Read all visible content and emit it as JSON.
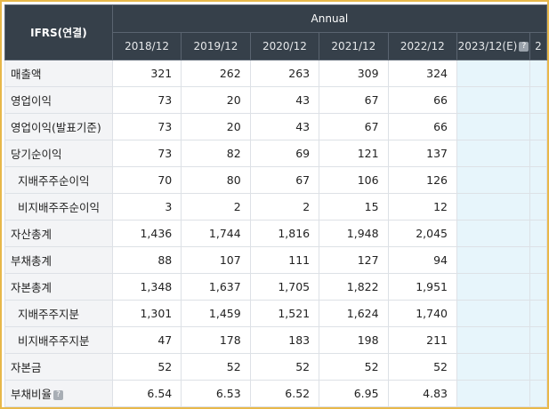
{
  "header": {
    "corner": "IFRS(연결)",
    "group": "Annual",
    "periods": [
      "2018/12",
      "2019/12",
      "2020/12",
      "2021/12",
      "2022/12",
      "2023/12(E)",
      "2"
    ]
  },
  "icons": {
    "help": "question-icon"
  },
  "colors": {
    "header_bg": "#36404a",
    "label_bg": "#f3f4f6",
    "estimate_bg": "#e7f5fb",
    "frame": "#e8b84a"
  },
  "rows": [
    {
      "label": "매출액",
      "sub": false,
      "values": [
        "321",
        "262",
        "263",
        "309",
        "324"
      ]
    },
    {
      "label": "영업이익",
      "sub": false,
      "values": [
        "73",
        "20",
        "43",
        "67",
        "66"
      ]
    },
    {
      "label": "영업이익(발표기준)",
      "sub": false,
      "values": [
        "73",
        "20",
        "43",
        "67",
        "66"
      ]
    },
    {
      "label": "당기순이익",
      "sub": false,
      "values": [
        "73",
        "82",
        "69",
        "121",
        "137"
      ]
    },
    {
      "label": "지배주주순이익",
      "sub": true,
      "values": [
        "70",
        "80",
        "67",
        "106",
        "126"
      ]
    },
    {
      "label": "비지배주주순이익",
      "sub": true,
      "values": [
        "3",
        "2",
        "2",
        "15",
        "12"
      ]
    },
    {
      "label": "자산총계",
      "sub": false,
      "values": [
        "1,436",
        "1,744",
        "1,816",
        "1,948",
        "2,045"
      ]
    },
    {
      "label": "부채총계",
      "sub": false,
      "values": [
        "88",
        "107",
        "111",
        "127",
        "94"
      ]
    },
    {
      "label": "자본총계",
      "sub": false,
      "values": [
        "1,348",
        "1,637",
        "1,705",
        "1,822",
        "1,951"
      ]
    },
    {
      "label": "지배주주지분",
      "sub": true,
      "values": [
        "1,301",
        "1,459",
        "1,521",
        "1,624",
        "1,740"
      ]
    },
    {
      "label": "비지배주주지분",
      "sub": true,
      "values": [
        "47",
        "178",
        "183",
        "198",
        "211"
      ]
    },
    {
      "label": "자본금",
      "sub": false,
      "values": [
        "52",
        "52",
        "52",
        "52",
        "52"
      ]
    },
    {
      "label": "부채비율",
      "sub": false,
      "help": true,
      "values": [
        "6.54",
        "6.53",
        "6.52",
        "6.95",
        "4.83"
      ]
    }
  ]
}
